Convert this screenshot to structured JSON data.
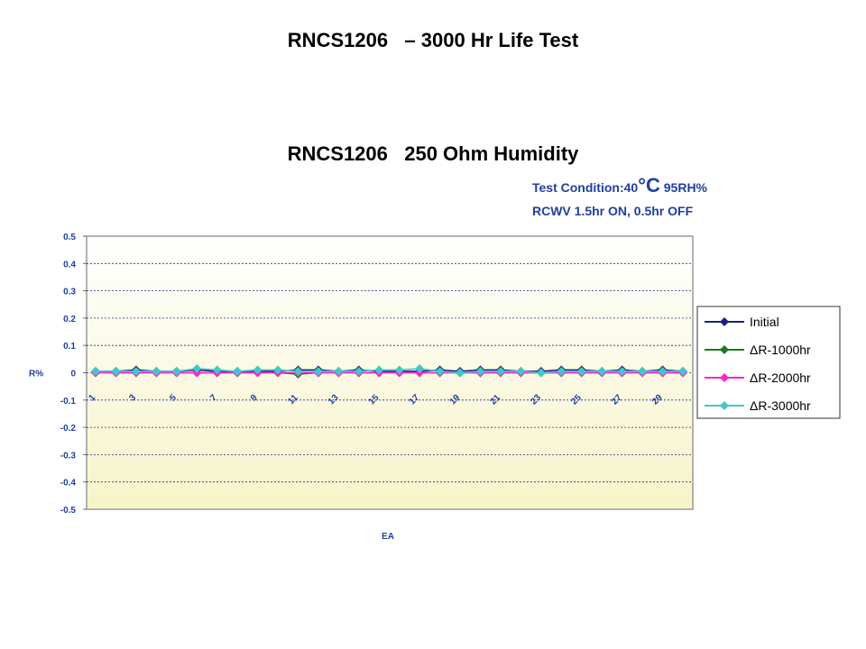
{
  "slide": {
    "title": "RNCS1206   – 3000 Hr Life Test"
  },
  "condition": {
    "line1_prefix": "Test Condition:40",
    "line1_degree": "°C",
    "line1_suffix": " 95RH%",
    "line2": "RCWV 1.5hr ON, 0.5hr OFF"
  },
  "colors": {
    "plot_top": "#ffffff",
    "plot_bottom": "#f7f4c8",
    "grid": "#1f2f8f",
    "axis_text": "#1f3f9f"
  },
  "chart_data": {
    "type": "line",
    "title": "RNCS1206   250 Ohm Humidity",
    "xlabel": "EA",
    "ylabel": "R%",
    "ylim": [
      -0.5,
      0.5
    ],
    "y_ticks": [
      "0.5",
      "0.4",
      "0.3",
      "0.2",
      "0.1",
      "0",
      "-0.1",
      "-0.2",
      "-0.3",
      "-0.4",
      "-0.5"
    ],
    "x": [
      1,
      2,
      3,
      4,
      5,
      6,
      7,
      8,
      9,
      10,
      11,
      12,
      13,
      14,
      15,
      16,
      17,
      18,
      19,
      20,
      21,
      22,
      23,
      24,
      25,
      26,
      27,
      28,
      29,
      30
    ],
    "x_tick_labels": [
      "1",
      "3",
      "5",
      "7",
      "9",
      "11",
      "13",
      "15",
      "17",
      "19",
      "21",
      "23",
      "25",
      "27",
      "29"
    ],
    "grid": true,
    "legend_position": "right",
    "series": [
      {
        "name": "Initial",
        "color": "#1a237e",
        "values": [
          0.005,
          0.005,
          0.01,
          0.005,
          0.005,
          0.01,
          0.005,
          0.005,
          0.005,
          0.005,
          0.01,
          0.01,
          0.005,
          0.01,
          0.005,
          0.005,
          0.005,
          0.01,
          0.005,
          0.01,
          0.01,
          0.005,
          0.005,
          0.01,
          0.01,
          0.005,
          0.01,
          0.005,
          0.01,
          0.005
        ]
      },
      {
        "name": "ΔR-1000hr",
        "color": "#1b7a1b",
        "values": [
          0.0,
          0.0,
          0.0,
          0.0,
          0.0,
          0.0,
          0.0,
          0.0,
          0.0,
          0.0,
          -0.005,
          0.0,
          0.0,
          0.0,
          0.0,
          0.0,
          0.0,
          0.0,
          0.0,
          0.0,
          0.0,
          0.0,
          0.0,
          0.0,
          0.0,
          0.0,
          0.0,
          0.0,
          0.0,
          0.0
        ]
      },
      {
        "name": "ΔR-2000hr",
        "color": "#ff22cc",
        "values": [
          0.0,
          0.0,
          0.0,
          0.0,
          0.0,
          0.0,
          0.0,
          0.0,
          0.0,
          0.0,
          0.0,
          0.0,
          0.0,
          0.0,
          0.0,
          0.0,
          0.0,
          0.0,
          0.0,
          0.0,
          0.0,
          0.0,
          0.0,
          0.0,
          0.0,
          0.0,
          0.0,
          0.0,
          0.0,
          0.0
        ]
      },
      {
        "name": "ΔR-3000hr",
        "color": "#40c8c8",
        "values": [
          0.005,
          0.005,
          0.005,
          0.005,
          0.005,
          0.015,
          0.01,
          0.005,
          0.01,
          0.01,
          0.005,
          0.005,
          0.005,
          0.005,
          0.01,
          0.01,
          0.015,
          0.005,
          0.0,
          0.005,
          0.005,
          0.005,
          0.0,
          0.005,
          0.005,
          0.005,
          0.005,
          0.005,
          0.005,
          0.005
        ]
      }
    ]
  }
}
